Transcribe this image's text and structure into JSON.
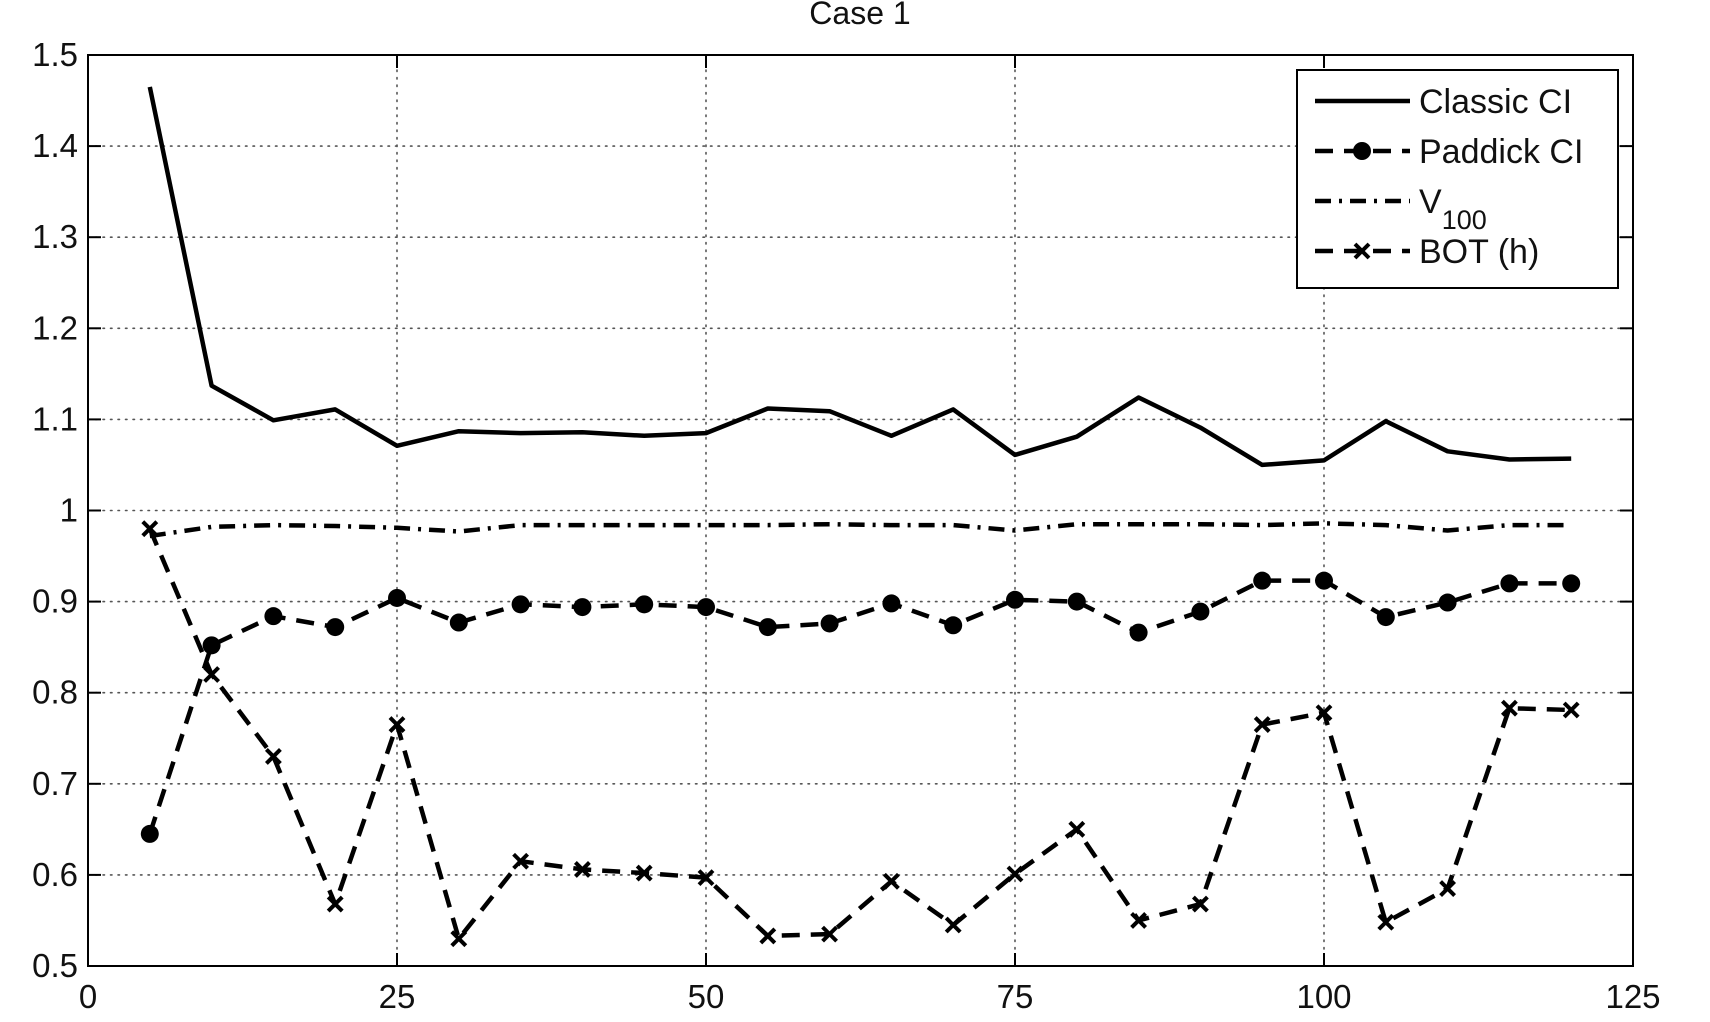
{
  "chart_data": {
    "type": "line",
    "title": "Case 1",
    "xlabel": "",
    "ylabel": "",
    "xlim": [
      0,
      125
    ],
    "ylim": [
      0.5,
      1.5
    ],
    "xticks": [
      0,
      25,
      50,
      75,
      100,
      125
    ],
    "yticks": [
      0.5,
      0.6,
      0.7,
      0.8,
      0.9,
      1.0,
      1.1,
      1.2,
      1.3,
      1.4,
      1.5
    ],
    "xtick_labels": [
      "0",
      "25",
      "50",
      "75",
      "100",
      "125"
    ],
    "ytick_labels": [
      "0.5",
      "0.6",
      "0.7",
      "0.8",
      "0.9",
      "1",
      "1.1",
      "1.2",
      "1.3",
      "1.4",
      "1.5"
    ],
    "grid": true,
    "legend_position": "top-right",
    "x": [
      5,
      10,
      15,
      20,
      25,
      30,
      35,
      40,
      45,
      50,
      55,
      60,
      65,
      70,
      75,
      80,
      85,
      90,
      95,
      100,
      105,
      110,
      115,
      120
    ],
    "series": [
      {
        "name": "Classic CI",
        "style": "solid",
        "marker": "none",
        "values": [
          1.465,
          1.137,
          1.099,
          1.111,
          1.071,
          1.087,
          1.085,
          1.086,
          1.082,
          1.085,
          1.112,
          1.109,
          1.082,
          1.111,
          1.061,
          1.081,
          1.124,
          1.091,
          1.05,
          1.055,
          1.098,
          1.065,
          1.056,
          1.057
        ]
      },
      {
        "name": "Paddick CI",
        "style": "dashed",
        "marker": "circle",
        "values": [
          0.645,
          0.852,
          0.884,
          0.872,
          0.904,
          0.877,
          0.897,
          0.894,
          0.897,
          0.894,
          0.872,
          0.876,
          0.898,
          0.874,
          0.902,
          0.9,
          0.866,
          0.889,
          0.923,
          0.923,
          0.883,
          0.899,
          0.92,
          0.92
        ]
      },
      {
        "name_main": "V",
        "name_sub": "100",
        "style": "dashdot",
        "marker": "none",
        "values": [
          0.972,
          0.982,
          0.984,
          0.983,
          0.981,
          0.977,
          0.984,
          0.984,
          0.984,
          0.984,
          0.984,
          0.985,
          0.984,
          0.984,
          0.978,
          0.985,
          0.985,
          0.985,
          0.984,
          0.986,
          0.984,
          0.978,
          0.984,
          0.984
        ]
      },
      {
        "name": "BOT (h)",
        "style": "dashed",
        "marker": "x",
        "values": [
          0.98,
          0.82,
          0.73,
          0.568,
          0.765,
          0.53,
          0.615,
          0.606,
          0.602,
          0.597,
          0.533,
          0.535,
          0.593,
          0.545,
          0.601,
          0.65,
          0.55,
          0.568,
          0.765,
          0.778,
          0.548,
          0.585,
          0.783,
          0.781
        ]
      }
    ],
    "colors": {
      "lines": "#000000",
      "grid": "#555555",
      "background": "#ffffff"
    }
  }
}
